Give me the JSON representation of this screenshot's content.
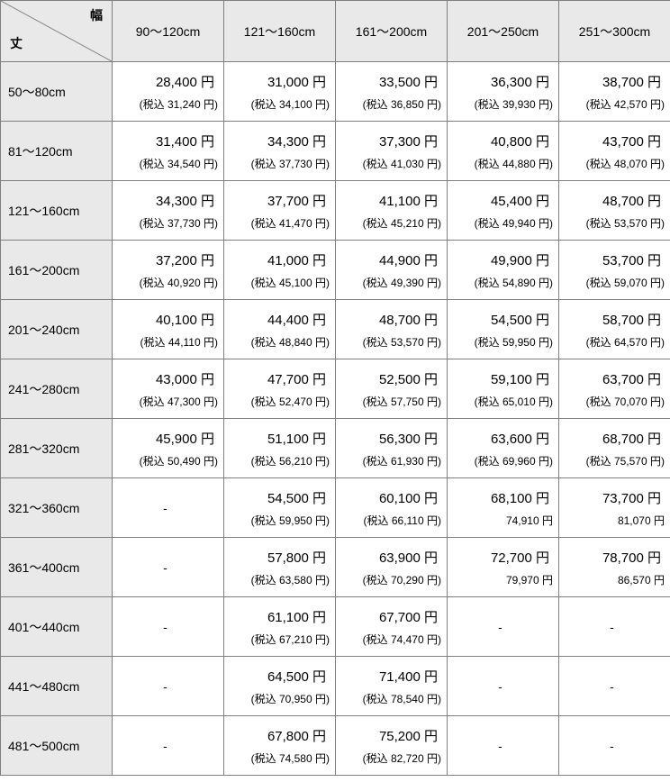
{
  "corner": {
    "top_label": "幅",
    "bottom_label": "丈"
  },
  "currency_suffix": " 円",
  "tax_prefix": "(税込 ",
  "tax_suffix": " 円)",
  "tax_suffix_noparen": " 円",
  "columns": [
    "90～120cm",
    "121～160cm",
    "161～200cm",
    "201～250cm",
    "251～300cm"
  ],
  "rows": [
    {
      "label": "50～80cm",
      "cells": [
        {
          "p": "28,400",
          "t": "31,240",
          "paren": true
        },
        {
          "p": "31,000",
          "t": "34,100",
          "paren": true
        },
        {
          "p": "33,500",
          "t": "36,850",
          "paren": true
        },
        {
          "p": "36,300",
          "t": "39,930",
          "paren": true
        },
        {
          "p": "38,700",
          "t": "42,570",
          "paren": true
        }
      ]
    },
    {
      "label": "81～120cm",
      "cells": [
        {
          "p": "31,400",
          "t": "34,540",
          "paren": true
        },
        {
          "p": "34,300",
          "t": "37,730",
          "paren": true
        },
        {
          "p": "37,300",
          "t": "41,030",
          "paren": true
        },
        {
          "p": "40,800",
          "t": "44,880",
          "paren": true
        },
        {
          "p": "43,700",
          "t": "48,070",
          "paren": true
        }
      ]
    },
    {
      "label": "121～160cm",
      "cells": [
        {
          "p": "34,300",
          "t": "37,730",
          "paren": true
        },
        {
          "p": "37,700",
          "t": "41,470",
          "paren": true
        },
        {
          "p": "41,100",
          "t": "45,210",
          "paren": true
        },
        {
          "p": "45,400",
          "t": "49,940",
          "paren": true
        },
        {
          "p": "48,700",
          "t": "53,570",
          "paren": true
        }
      ]
    },
    {
      "label": "161～200cm",
      "cells": [
        {
          "p": "37,200",
          "t": "40,920",
          "paren": true
        },
        {
          "p": "41,000",
          "t": "45,100",
          "paren": true
        },
        {
          "p": "44,900",
          "t": "49,390",
          "paren": true
        },
        {
          "p": "49,900",
          "t": "54,890",
          "paren": true
        },
        {
          "p": "53,700",
          "t": "59,070",
          "paren": true
        }
      ]
    },
    {
      "label": "201～240cm",
      "cells": [
        {
          "p": "40,100",
          "t": "44,110",
          "paren": true
        },
        {
          "p": "44,400",
          "t": "48,840",
          "paren": true
        },
        {
          "p": "48,700",
          "t": "53,570",
          "paren": true
        },
        {
          "p": "54,500",
          "t": "59,950",
          "paren": true
        },
        {
          "p": "58,700",
          "t": "64,570",
          "paren": true
        }
      ]
    },
    {
      "label": "241～280cm",
      "cells": [
        {
          "p": "43,000",
          "t": "47,300",
          "paren": true
        },
        {
          "p": "47,700",
          "t": "52,470",
          "paren": true
        },
        {
          "p": "52,500",
          "t": "57,750",
          "paren": true
        },
        {
          "p": "59,100",
          "t": "65,010",
          "paren": true
        },
        {
          "p": "63,700",
          "t": "70,070",
          "paren": true
        }
      ]
    },
    {
      "label": "281～320cm",
      "cells": [
        {
          "p": "45,900",
          "t": "50,490",
          "paren": true
        },
        {
          "p": "51,100",
          "t": "56,210",
          "paren": true
        },
        {
          "p": "56,300",
          "t": "61,930",
          "paren": true
        },
        {
          "p": "63,600",
          "t": "69,960",
          "paren": true
        },
        {
          "p": "68,700",
          "t": "75,570",
          "paren": true
        }
      ]
    },
    {
      "label": "321～360cm",
      "cells": [
        {
          "dash": true
        },
        {
          "p": "54,500",
          "t": "59,950",
          "paren": true
        },
        {
          "p": "60,100",
          "t": "66,110",
          "paren": true
        },
        {
          "p": "68,100",
          "t": "74,910",
          "paren": false
        },
        {
          "p": "73,700",
          "t": "81,070",
          "paren": false
        }
      ]
    },
    {
      "label": "361～400cm",
      "cells": [
        {
          "dash": true
        },
        {
          "p": "57,800",
          "t": "63,580",
          "paren": true
        },
        {
          "p": "63,900",
          "t": "70,290",
          "paren": true
        },
        {
          "p": "72,700",
          "t": "79,970",
          "paren": false
        },
        {
          "p": "78,700",
          "t": "86,570",
          "paren": false
        }
      ]
    },
    {
      "label": "401～440cm",
      "cells": [
        {
          "dash": true
        },
        {
          "p": "61,100",
          "t": "67,210",
          "paren": true
        },
        {
          "p": "67,700",
          "t": "74,470",
          "paren": true
        },
        {
          "dash": true
        },
        {
          "dash": true
        }
      ]
    },
    {
      "label": "441～480cm",
      "cells": [
        {
          "dash": true
        },
        {
          "p": "64,500",
          "t": "70,950",
          "paren": true
        },
        {
          "p": "71,400",
          "t": "78,540",
          "paren": true
        },
        {
          "dash": true
        },
        {
          "dash": true
        }
      ]
    },
    {
      "label": "481～500cm",
      "cells": [
        {
          "dash": true
        },
        {
          "p": "67,800",
          "t": "74,580",
          "paren": true
        },
        {
          "p": "75,200",
          "t": "82,720",
          "paren": true
        },
        {
          "dash": true
        },
        {
          "dash": true
        }
      ]
    }
  ],
  "style": {
    "border_color": "#7f7f7f",
    "header_bg": "#e9e9e9",
    "body_bg": "#ffffff",
    "main_fontsize": 15,
    "tax_fontsize": 12,
    "label_fontsize": 14
  }
}
